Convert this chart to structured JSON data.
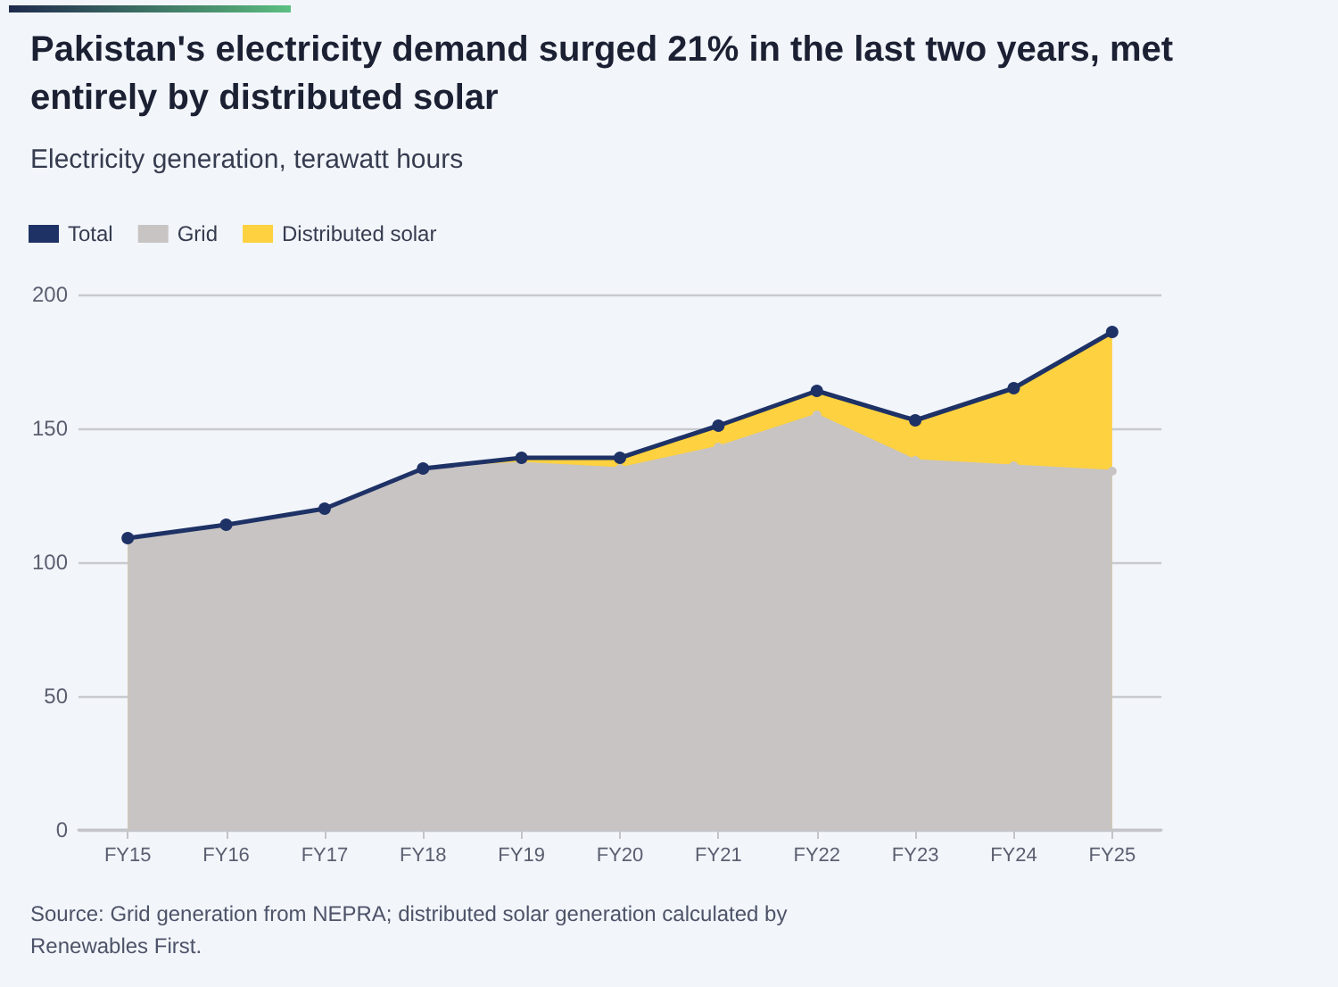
{
  "chart_data": {
    "type": "area",
    "title": "Pakistan's electricity demand surged 21% in the last two years, met entirely by distributed solar",
    "subtitle": "Electricity generation, terawatt hours",
    "categories": [
      "FY15",
      "FY16",
      "FY17",
      "FY18",
      "FY19",
      "FY20",
      "FY21",
      "FY22",
      "FY23",
      "FY24",
      "FY25"
    ],
    "series": [
      {
        "name": "Total",
        "type": "line",
        "color": "#1e3266",
        "marker": "circle",
        "values": [
          109,
          114,
          120,
          135,
          139,
          139,
          151,
          164,
          153,
          165,
          186
        ]
      },
      {
        "name": "Grid",
        "color": "#c8c4c3",
        "marker": "circle",
        "values": [
          109,
          114,
          120,
          135,
          137,
          135,
          143,
          155,
          138,
          136,
          134
        ]
      },
      {
        "name": "Distributed solar",
        "color": "#fdd13f",
        "marker": "none",
        "values": [
          0,
          0,
          0,
          0,
          2,
          4,
          8,
          9,
          15,
          29,
          52
        ]
      }
    ],
    "stacked": true,
    "ylim": [
      0,
      200
    ],
    "yticks": [
      0,
      50,
      100,
      150,
      200
    ],
    "grid": "y",
    "legend": "top left",
    "line_style": "solid",
    "annotations": [
      "Source: Grid generation from NEPRA; distributed solar generation calculated by Renewables First."
    ]
  }
}
